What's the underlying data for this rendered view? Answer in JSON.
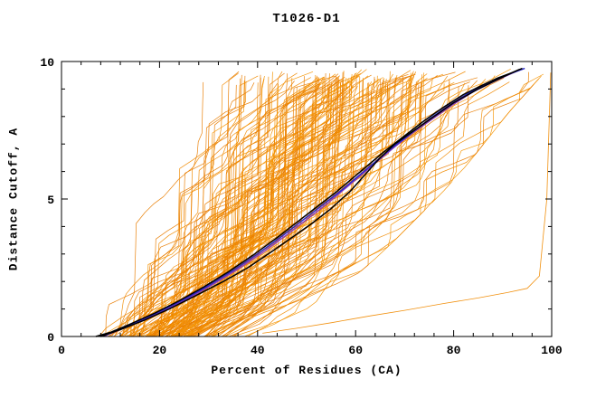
{
  "chart_data": {
    "type": "line",
    "title": "T1026-D1",
    "xlabel": "Percent of Residues (CA)",
    "ylabel": "Distance Cutoff, A",
    "xlim": [
      0,
      100
    ],
    "ylim": [
      0,
      10
    ],
    "grid": false,
    "legend": "none",
    "x_major_ticks": [
      0,
      20,
      40,
      60,
      80,
      100
    ],
    "x_minor_ticks": [
      4,
      8,
      12,
      16,
      24,
      28,
      32,
      36,
      44,
      48,
      52,
      56,
      64,
      68,
      72,
      76,
      84,
      88,
      92,
      96
    ],
    "y_major_ticks": [
      0,
      5,
      10
    ],
    "y_minor_ticks": [
      1,
      2,
      3,
      4,
      6,
      7,
      8,
      9
    ],
    "ensemble": {
      "label": "prediction-curves",
      "count": 175,
      "seed": 1026,
      "colors": [
        "#f08a00",
        "#e87c00",
        "#f49400"
      ],
      "stroke_width": 0.7,
      "left_envelope": [
        [
          4,
          0
        ],
        [
          5.5,
          0.5
        ],
        [
          7,
          1.2
        ],
        [
          8.5,
          2.0
        ],
        [
          10,
          3.0
        ],
        [
          11.5,
          4.0
        ],
        [
          13,
          5.0
        ],
        [
          14.5,
          6.0
        ],
        [
          16,
          7.0
        ],
        [
          18,
          8.0
        ],
        [
          20,
          8.8
        ],
        [
          22,
          9.4
        ],
        [
          23.5,
          9.75
        ]
      ],
      "right_envelope": [
        [
          38,
          0
        ],
        [
          44,
          0.5
        ],
        [
          50,
          1.0
        ],
        [
          56,
          1.7
        ],
        [
          62,
          2.5
        ],
        [
          68,
          3.5
        ],
        [
          73,
          4.4
        ],
        [
          78,
          5.3
        ],
        [
          83,
          6.3
        ],
        [
          87,
          7.2
        ],
        [
          91,
          8.1
        ],
        [
          95,
          8.9
        ],
        [
          98,
          9.5
        ],
        [
          100,
          9.75
        ]
      ],
      "outlier": {
        "name": "low-outlier-curve",
        "color": "#f08a00",
        "stroke_width": 0.8,
        "points": [
          [
            41,
            0.12
          ],
          [
            48,
            0.3
          ],
          [
            55,
            0.5
          ],
          [
            63,
            0.75
          ],
          [
            70,
            0.95
          ],
          [
            78,
            1.2
          ],
          [
            85,
            1.4
          ],
          [
            91,
            1.6
          ],
          [
            95,
            1.75
          ],
          [
            97.5,
            2.2
          ],
          [
            99,
            5.0
          ],
          [
            99.8,
            9.6
          ]
        ]
      }
    },
    "series": [
      {
        "name": "model-purple",
        "color": "#8a3bb8",
        "stroke_width": 1.4,
        "points": [
          [
            8.5,
            0
          ],
          [
            12,
            0.25
          ],
          [
            16,
            0.55
          ],
          [
            21,
            0.95
          ],
          [
            26,
            1.4
          ],
          [
            31,
            1.9
          ],
          [
            36,
            2.45
          ],
          [
            41,
            3.05
          ],
          [
            46,
            3.7
          ],
          [
            50,
            4.25
          ],
          [
            54,
            4.8
          ],
          [
            58,
            5.4
          ],
          [
            62,
            6.0
          ],
          [
            65,
            6.45
          ],
          [
            68,
            6.9
          ],
          [
            72,
            7.45
          ],
          [
            76,
            7.95
          ],
          [
            80,
            8.45
          ],
          [
            84,
            8.9
          ],
          [
            88,
            9.25
          ],
          [
            91,
            9.5
          ],
          [
            93.5,
            9.7
          ]
        ]
      },
      {
        "name": "model-blue",
        "color": "#2727c8",
        "stroke_width": 1.5,
        "points": [
          [
            8,
            0
          ],
          [
            11,
            0.2
          ],
          [
            15,
            0.5
          ],
          [
            20,
            0.9
          ],
          [
            25,
            1.35
          ],
          [
            30,
            1.85
          ],
          [
            35,
            2.4
          ],
          [
            40,
            3.0
          ],
          [
            45,
            3.65
          ],
          [
            49,
            4.2
          ],
          [
            53,
            4.75
          ],
          [
            57,
            5.3
          ],
          [
            61,
            5.9
          ],
          [
            64,
            6.35
          ],
          [
            67,
            6.8
          ],
          [
            71,
            7.35
          ],
          [
            75,
            7.9
          ],
          [
            79,
            8.4
          ],
          [
            83,
            8.85
          ],
          [
            87,
            9.2
          ],
          [
            90,
            9.45
          ],
          [
            93,
            9.65
          ],
          [
            94.5,
            9.75
          ]
        ]
      },
      {
        "name": "model-black-1",
        "color": "#000000",
        "stroke_width": 1.5,
        "points": [
          [
            7,
            0
          ],
          [
            10,
            0.15
          ],
          [
            14,
            0.45
          ],
          [
            19,
            0.85
          ],
          [
            24,
            1.3
          ],
          [
            29,
            1.8
          ],
          [
            34,
            2.35
          ],
          [
            39,
            2.95
          ],
          [
            44,
            3.6
          ],
          [
            48,
            4.15
          ],
          [
            52,
            4.7
          ],
          [
            56,
            5.25
          ],
          [
            60,
            5.85
          ],
          [
            63,
            6.3
          ],
          [
            66,
            6.75
          ],
          [
            70,
            7.3
          ],
          [
            74,
            7.85
          ],
          [
            78,
            8.35
          ],
          [
            82,
            8.8
          ],
          [
            86,
            9.15
          ],
          [
            89,
            9.4
          ],
          [
            92,
            9.6
          ],
          [
            93.5,
            9.72
          ]
        ]
      },
      {
        "name": "model-black-2",
        "color": "#000000",
        "stroke_width": 1.5,
        "points": [
          [
            8,
            0
          ],
          [
            12,
            0.25
          ],
          [
            17,
            0.6
          ],
          [
            22,
            1.0
          ],
          [
            27,
            1.45
          ],
          [
            33,
            2.0
          ],
          [
            38,
            2.5
          ],
          [
            43,
            3.1
          ],
          [
            47,
            3.6
          ],
          [
            51,
            4.1
          ],
          [
            55,
            4.65
          ],
          [
            59,
            5.3
          ],
          [
            62,
            5.9
          ],
          [
            65,
            6.5
          ],
          [
            68,
            7.0
          ],
          [
            72,
            7.5
          ],
          [
            76,
            8.0
          ],
          [
            80,
            8.5
          ],
          [
            85,
            9.0
          ],
          [
            89,
            9.35
          ],
          [
            92,
            9.6
          ],
          [
            94,
            9.75
          ]
        ]
      }
    ]
  }
}
